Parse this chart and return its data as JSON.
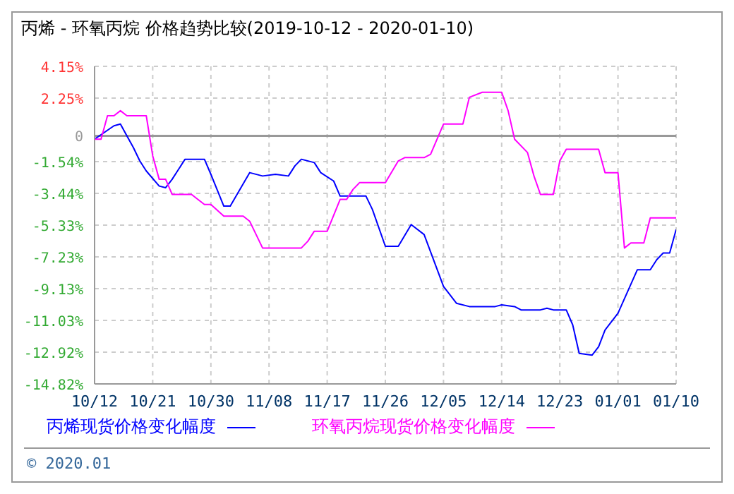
{
  "chart_data": {
    "type": "line",
    "title": "丙烯 - 环氧丙烷 价格趋势比较(2019-10-12 - 2020-01-10)",
    "xlim": [
      "2019-10-12",
      "2020-01-10"
    ],
    "xticks": [
      {
        "value": "2019-10-12",
        "label": "10/12"
      },
      {
        "value": "2019-10-21",
        "label": "10/21"
      },
      {
        "value": "2019-10-30",
        "label": "10/30"
      },
      {
        "value": "2019-11-08",
        "label": "11/08"
      },
      {
        "value": "2019-11-17",
        "label": "11/17"
      },
      {
        "value": "2019-11-26",
        "label": "11/26"
      },
      {
        "value": "2019-12-05",
        "label": "12/05"
      },
      {
        "value": "2019-12-14",
        "label": "12/14"
      },
      {
        "value": "2019-12-23",
        "label": "12/23"
      },
      {
        "value": "2020-01-01",
        "label": "01/01"
      },
      {
        "value": "2020-01-10",
        "label": "01/10"
      }
    ],
    "ylim": [
      -14.82,
      4.15
    ],
    "yticks": [
      {
        "value": 4.15,
        "label": "4.15%"
      },
      {
        "value": 2.25,
        "label": "2.25%"
      },
      0,
      {
        "value": -1.54,
        "label": "-1.54%"
      },
      {
        "value": -3.44,
        "label": "-3.44%"
      },
      {
        "value": -5.33,
        "label": "-5.33%"
      },
      {
        "value": -7.23,
        "label": "-7.23%"
      },
      {
        "value": -9.13,
        "label": "-9.13%"
      },
      {
        "value": -11.03,
        "label": "-11.03%"
      },
      {
        "value": -12.92,
        "label": "-12.92%"
      },
      {
        "value": -14.82,
        "label": "-14.82%"
      }
    ],
    "grid": true,
    "legend": "bottom",
    "marker": "none",
    "line_style": "solid",
    "ref_lines": [
      {
        "axis": "y",
        "value": 0,
        "color": "#999999"
      }
    ],
    "annotations": [
      "© 2020.01"
    ],
    "series": [
      {
        "name": "丙烯现货价格变化幅度",
        "color": "#0000ff",
        "x": [
          "2019-10-12",
          "2019-10-15",
          "2019-10-16",
          "2019-10-17",
          "2019-10-18",
          "2019-10-19",
          "2019-10-20",
          "2019-10-22",
          "2019-10-23",
          "2019-10-24",
          "2019-10-26",
          "2019-10-29",
          "2019-10-30",
          "2019-11-01",
          "2019-11-02",
          "2019-11-05",
          "2019-11-07",
          "2019-11-09",
          "2019-11-11",
          "2019-11-12",
          "2019-11-13",
          "2019-11-15",
          "2019-11-16",
          "2019-11-18",
          "2019-11-19",
          "2019-11-23",
          "2019-11-24",
          "2019-11-26",
          "2019-11-28",
          "2019-11-30",
          "2019-12-02",
          "2019-12-05",
          "2019-12-07",
          "2019-12-09",
          "2019-12-13",
          "2019-12-14",
          "2019-12-16",
          "2019-12-17",
          "2019-12-20",
          "2019-12-21",
          "2019-12-22",
          "2019-12-24",
          "2019-12-25",
          "2019-12-26",
          "2019-12-28",
          "2019-12-29",
          "2019-12-30",
          "2020-01-01",
          "2020-01-04",
          "2020-01-06",
          "2020-01-07",
          "2020-01-08",
          "2020-01-09",
          "2020-01-10"
        ],
        "values": [
          -0.2,
          0.6,
          0.7,
          0,
          -0.7,
          -1.5,
          -2.1,
          -3.0,
          -3.1,
          -2.6,
          -1.4,
          -1.4,
          -2.3,
          -4.2,
          -4.2,
          -2.2,
          -2.4,
          -2.3,
          -2.4,
          -1.8,
          -1.4,
          -1.6,
          -2.2,
          -2.7,
          -3.6,
          -3.6,
          -4.4,
          -6.6,
          -6.6,
          -5.3,
          -5.9,
          -9.0,
          -10.0,
          -10.2,
          -10.2,
          -10.1,
          -10.2,
          -10.4,
          -10.4,
          -10.3,
          -10.4,
          -10.4,
          -11.3,
          -13.0,
          -13.1,
          -12.6,
          -11.6,
          -10.6,
          -8.0,
          -8.0,
          -7.4,
          -7.0,
          -7.0,
          -5.6
        ]
      },
      {
        "name": "环氧丙烷现货价格变化幅度",
        "color": "#ff00ff",
        "x": [
          "2019-10-12",
          "2019-10-13",
          "2019-10-14",
          "2019-10-15",
          "2019-10-16",
          "2019-10-17",
          "2019-10-20",
          "2019-10-21",
          "2019-10-22",
          "2019-10-23",
          "2019-10-24",
          "2019-10-27",
          "2019-10-29",
          "2019-10-30",
          "2019-11-01",
          "2019-11-04",
          "2019-11-05",
          "2019-11-07",
          "2019-11-13",
          "2019-11-14",
          "2019-11-15",
          "2019-11-17",
          "2019-11-19",
          "2019-11-20",
          "2019-11-21",
          "2019-11-22",
          "2019-11-26",
          "2019-11-28",
          "2019-11-29",
          "2019-12-02",
          "2019-12-03",
          "2019-12-05",
          "2019-12-08",
          "2019-12-09",
          "2019-12-11",
          "2019-12-14",
          "2019-12-15",
          "2019-12-16",
          "2019-12-18",
          "2019-12-19",
          "2019-12-20",
          "2019-12-22",
          "2019-12-23",
          "2019-12-24",
          "2019-12-29",
          "2019-12-30",
          "2020-01-01",
          "2020-01-02",
          "2020-01-03",
          "2020-01-05",
          "2020-01-06",
          "2020-01-10"
        ],
        "values": [
          -0.2,
          -0.2,
          1.2,
          1.2,
          1.5,
          1.2,
          1.2,
          -1.2,
          -2.6,
          -2.6,
          -3.5,
          -3.5,
          -4.1,
          -4.1,
          -4.8,
          -4.8,
          -5.1,
          -6.7,
          -6.7,
          -6.3,
          -5.7,
          -5.7,
          -3.8,
          -3.8,
          -3.2,
          -2.8,
          -2.8,
          -1.5,
          -1.3,
          -1.3,
          -1.1,
          0.7,
          0.7,
          2.3,
          2.6,
          2.6,
          1.5,
          -0.2,
          -1.0,
          -2.4,
          -3.5,
          -3.5,
          -1.5,
          -0.8,
          -0.8,
          -2.2,
          -2.2,
          -6.7,
          -6.4,
          -6.4,
          -4.9,
          -4.9
        ]
      }
    ]
  }
}
